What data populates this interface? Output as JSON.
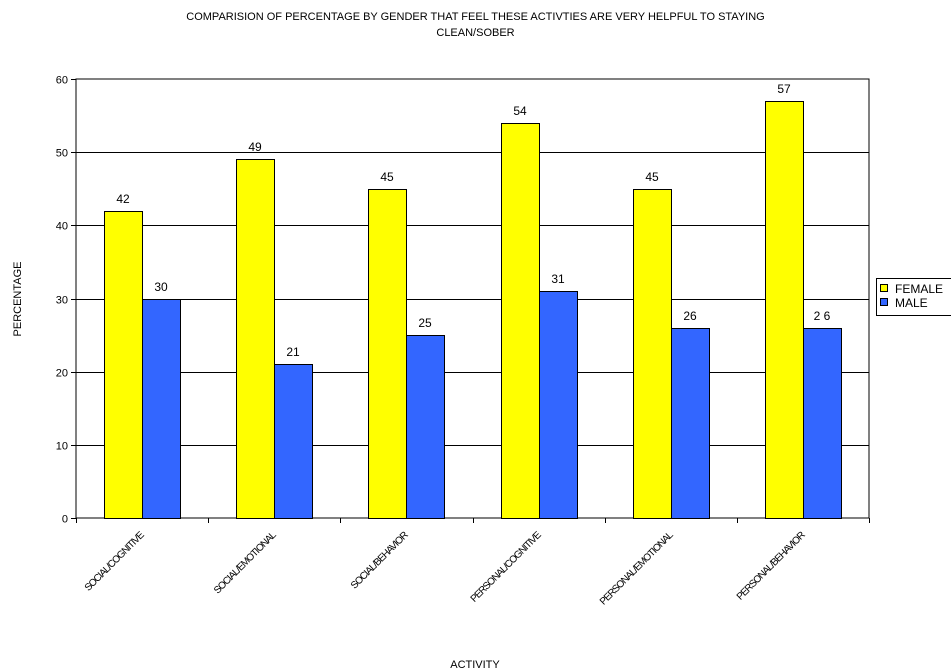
{
  "chart_data": {
    "type": "bar",
    "title_lines": [
      "COMPARISION OF PERCENTAGE BY GENDER THAT FEEL THESE ACTIVTIES ARE VERY HELPFUL TO STAYING",
      "CLEAN/SOBER"
    ],
    "xlabel": "ACTIVITY",
    "ylabel": "PERCENTAGE",
    "ylim": [
      0,
      60
    ],
    "yticks": [
      "0",
      "10",
      "20",
      "30",
      "40",
      "50",
      "60"
    ],
    "grid": true,
    "legend_position": "right",
    "categories": [
      "SOCIAL/COGNITIVE",
      "SOCIAL/EMOTIONAL",
      "SOCIAL/BEHAVIOR",
      "PERSONAL/COGNITIVE",
      "PERSONAL/EMOTIONAL",
      "PERSONAL/BEHAVIOR"
    ],
    "series": [
      {
        "name": "FEMALE",
        "color": "#ffff00",
        "values": [
          42,
          49,
          45,
          54,
          45,
          57
        ]
      },
      {
        "name": "MALE",
        "color": "#3366ff",
        "values": [
          30,
          21,
          25,
          31,
          26,
          26
        ]
      }
    ],
    "data_labels": [
      [
        "42",
        "49",
        "45",
        "54",
        "45",
        "57"
      ],
      [
        "30",
        "21",
        "25",
        "31",
        "26",
        "2 6"
      ]
    ]
  }
}
